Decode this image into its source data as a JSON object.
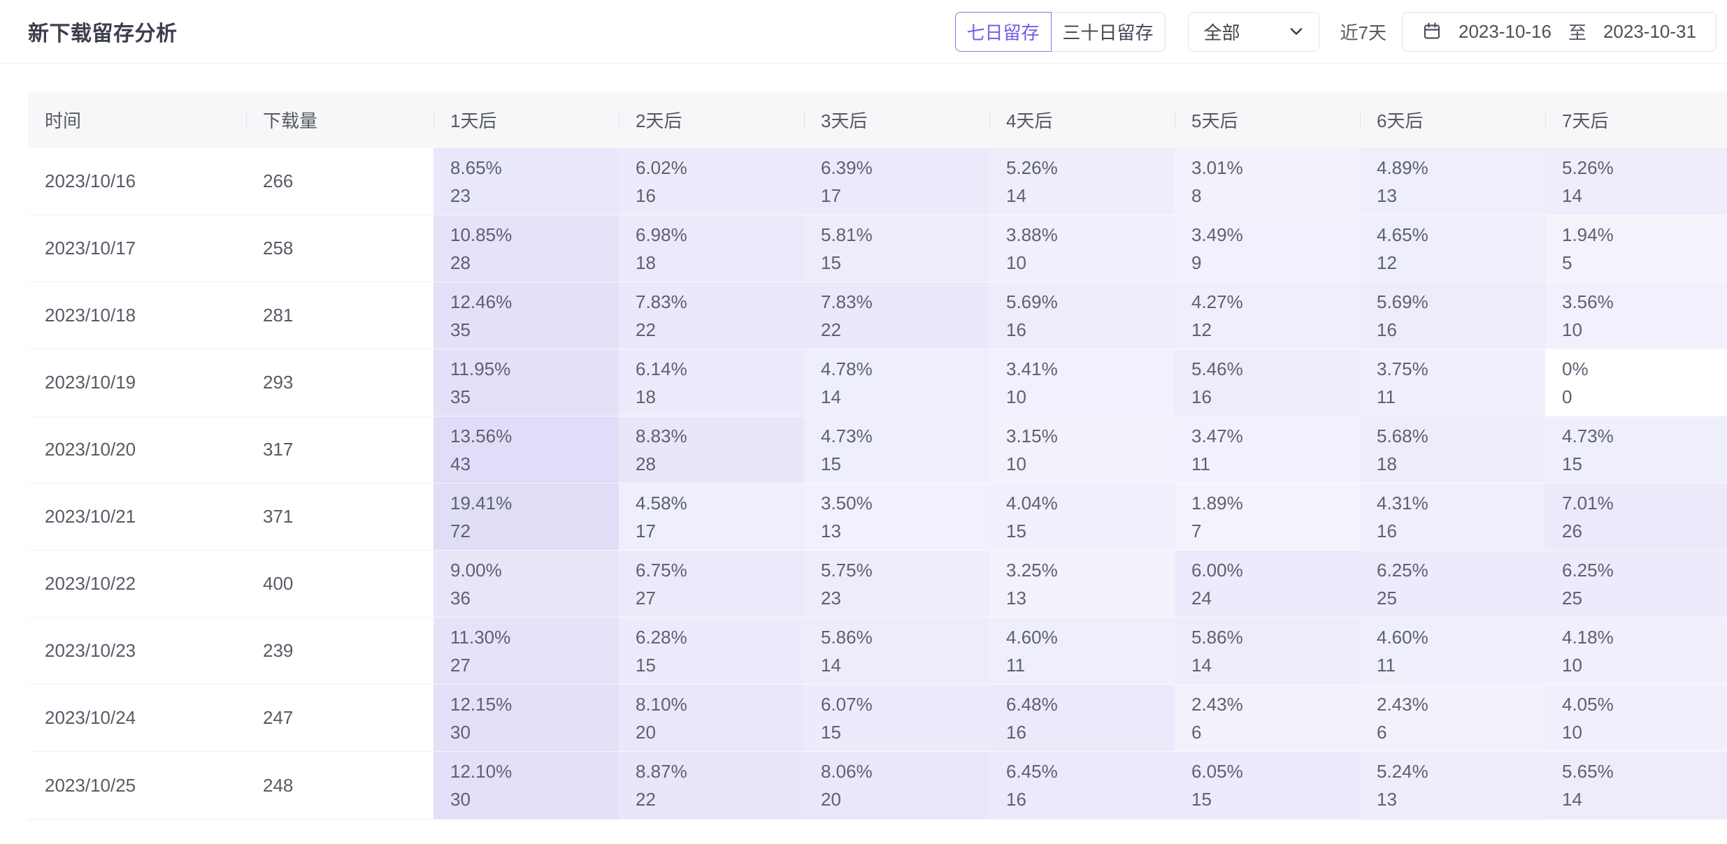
{
  "page": {
    "title": "新下载留存分析"
  },
  "controls": {
    "retention_tabs": [
      {
        "label": "七日留存",
        "selected": true
      },
      {
        "label": "三十日留存",
        "selected": false
      }
    ],
    "filter_select": {
      "value": "全部"
    },
    "range_label": "近7天",
    "date_range": {
      "start": "2023-10-16",
      "separator": "至",
      "end": "2023-10-31"
    }
  },
  "colors": {
    "accent": "#6F61E8",
    "accent_border": "#837AEC",
    "heat_base": "#7060DC",
    "header_bg": "#F7F7F9"
  },
  "table": {
    "columns": [
      "时间",
      "下载量",
      "1天后",
      "2天后",
      "3天后",
      "4天后",
      "5天后",
      "6天后",
      "7天后"
    ],
    "rows": [
      {
        "date": "2023/10/16",
        "downloads": "266",
        "cells": [
          {
            "pct": "8.65%",
            "count": "23"
          },
          {
            "pct": "6.02%",
            "count": "16"
          },
          {
            "pct": "6.39%",
            "count": "17"
          },
          {
            "pct": "5.26%",
            "count": "14"
          },
          {
            "pct": "3.01%",
            "count": "8"
          },
          {
            "pct": "4.89%",
            "count": "13"
          },
          {
            "pct": "5.26%",
            "count": "14"
          }
        ]
      },
      {
        "date": "2023/10/17",
        "downloads": "258",
        "cells": [
          {
            "pct": "10.85%",
            "count": "28"
          },
          {
            "pct": "6.98%",
            "count": "18"
          },
          {
            "pct": "5.81%",
            "count": "15"
          },
          {
            "pct": "3.88%",
            "count": "10"
          },
          {
            "pct": "3.49%",
            "count": "9"
          },
          {
            "pct": "4.65%",
            "count": "12"
          },
          {
            "pct": "1.94%",
            "count": "5"
          }
        ]
      },
      {
        "date": "2023/10/18",
        "downloads": "281",
        "cells": [
          {
            "pct": "12.46%",
            "count": "35"
          },
          {
            "pct": "7.83%",
            "count": "22"
          },
          {
            "pct": "7.83%",
            "count": "22"
          },
          {
            "pct": "5.69%",
            "count": "16"
          },
          {
            "pct": "4.27%",
            "count": "12"
          },
          {
            "pct": "5.69%",
            "count": "16"
          },
          {
            "pct": "3.56%",
            "count": "10"
          }
        ]
      },
      {
        "date": "2023/10/19",
        "downloads": "293",
        "cells": [
          {
            "pct": "11.95%",
            "count": "35"
          },
          {
            "pct": "6.14%",
            "count": "18"
          },
          {
            "pct": "4.78%",
            "count": "14"
          },
          {
            "pct": "3.41%",
            "count": "10"
          },
          {
            "pct": "5.46%",
            "count": "16"
          },
          {
            "pct": "3.75%",
            "count": "11"
          },
          {
            "pct": "0%",
            "count": "0"
          }
        ]
      },
      {
        "date": "2023/10/20",
        "downloads": "317",
        "cells": [
          {
            "pct": "13.56%",
            "count": "43"
          },
          {
            "pct": "8.83%",
            "count": "28"
          },
          {
            "pct": "4.73%",
            "count": "15"
          },
          {
            "pct": "3.15%",
            "count": "10"
          },
          {
            "pct": "3.47%",
            "count": "11"
          },
          {
            "pct": "5.68%",
            "count": "18"
          },
          {
            "pct": "4.73%",
            "count": "15"
          }
        ]
      },
      {
        "date": "2023/10/21",
        "downloads": "371",
        "cells": [
          {
            "pct": "19.41%",
            "count": "72"
          },
          {
            "pct": "4.58%",
            "count": "17"
          },
          {
            "pct": "3.50%",
            "count": "13"
          },
          {
            "pct": "4.04%",
            "count": "15"
          },
          {
            "pct": "1.89%",
            "count": "7"
          },
          {
            "pct": "4.31%",
            "count": "16"
          },
          {
            "pct": "7.01%",
            "count": "26"
          }
        ]
      },
      {
        "date": "2023/10/22",
        "downloads": "400",
        "cells": [
          {
            "pct": "9.00%",
            "count": "36"
          },
          {
            "pct": "6.75%",
            "count": "27"
          },
          {
            "pct": "5.75%",
            "count": "23"
          },
          {
            "pct": "3.25%",
            "count": "13"
          },
          {
            "pct": "6.00%",
            "count": "24"
          },
          {
            "pct": "6.25%",
            "count": "25"
          },
          {
            "pct": "6.25%",
            "count": "25"
          }
        ]
      },
      {
        "date": "2023/10/23",
        "downloads": "239",
        "cells": [
          {
            "pct": "11.30%",
            "count": "27"
          },
          {
            "pct": "6.28%",
            "count": "15"
          },
          {
            "pct": "5.86%",
            "count": "14"
          },
          {
            "pct": "4.60%",
            "count": "11"
          },
          {
            "pct": "5.86%",
            "count": "14"
          },
          {
            "pct": "4.60%",
            "count": "11"
          },
          {
            "pct": "4.18%",
            "count": "10"
          }
        ]
      },
      {
        "date": "2023/10/24",
        "downloads": "247",
        "cells": [
          {
            "pct": "12.15%",
            "count": "30"
          },
          {
            "pct": "8.10%",
            "count": "20"
          },
          {
            "pct": "6.07%",
            "count": "15"
          },
          {
            "pct": "6.48%",
            "count": "16"
          },
          {
            "pct": "2.43%",
            "count": "6"
          },
          {
            "pct": "2.43%",
            "count": "6"
          },
          {
            "pct": "4.05%",
            "count": "10"
          }
        ]
      },
      {
        "date": "2023/10/25",
        "downloads": "248",
        "cells": [
          {
            "pct": "12.10%",
            "count": "30"
          },
          {
            "pct": "8.87%",
            "count": "22"
          },
          {
            "pct": "8.06%",
            "count": "20"
          },
          {
            "pct": "6.45%",
            "count": "16"
          },
          {
            "pct": "6.05%",
            "count": "15"
          },
          {
            "pct": "5.24%",
            "count": "13"
          },
          {
            "pct": "5.65%",
            "count": "14"
          }
        ]
      }
    ]
  }
}
